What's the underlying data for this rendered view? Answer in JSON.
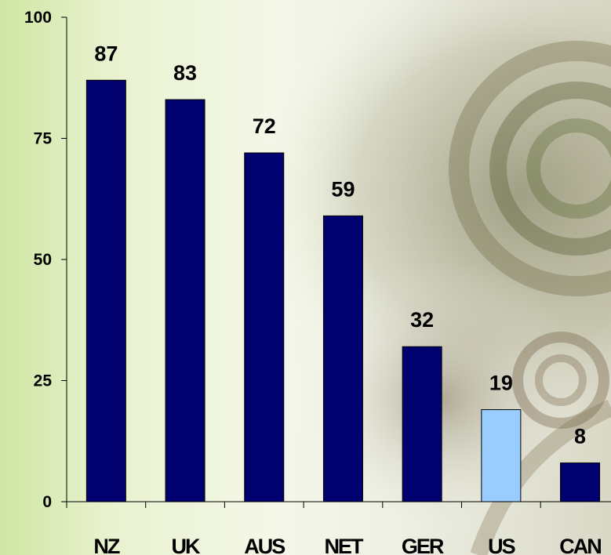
{
  "chart_data": {
    "type": "bar",
    "categories": [
      "NZ",
      "UK",
      "AUS",
      "NET",
      "GER",
      "US",
      "CAN"
    ],
    "values": [
      87,
      83,
      72,
      59,
      32,
      19,
      8
    ],
    "data_labels": [
      "87",
      "83",
      "72",
      "59",
      "32",
      "19",
      "8"
    ],
    "title": "",
    "xlabel": "",
    "ylabel": "",
    "ylim": [
      0,
      100
    ],
    "yticks": [
      0,
      25,
      50,
      75,
      100
    ],
    "ytick_labels": [
      "0",
      "25",
      "50",
      "75",
      "100"
    ],
    "grid": false,
    "legend": "none",
    "colors": {
      "bar": "#00006e",
      "highlight": "#99ccff",
      "highlight_category": "US"
    }
  }
}
